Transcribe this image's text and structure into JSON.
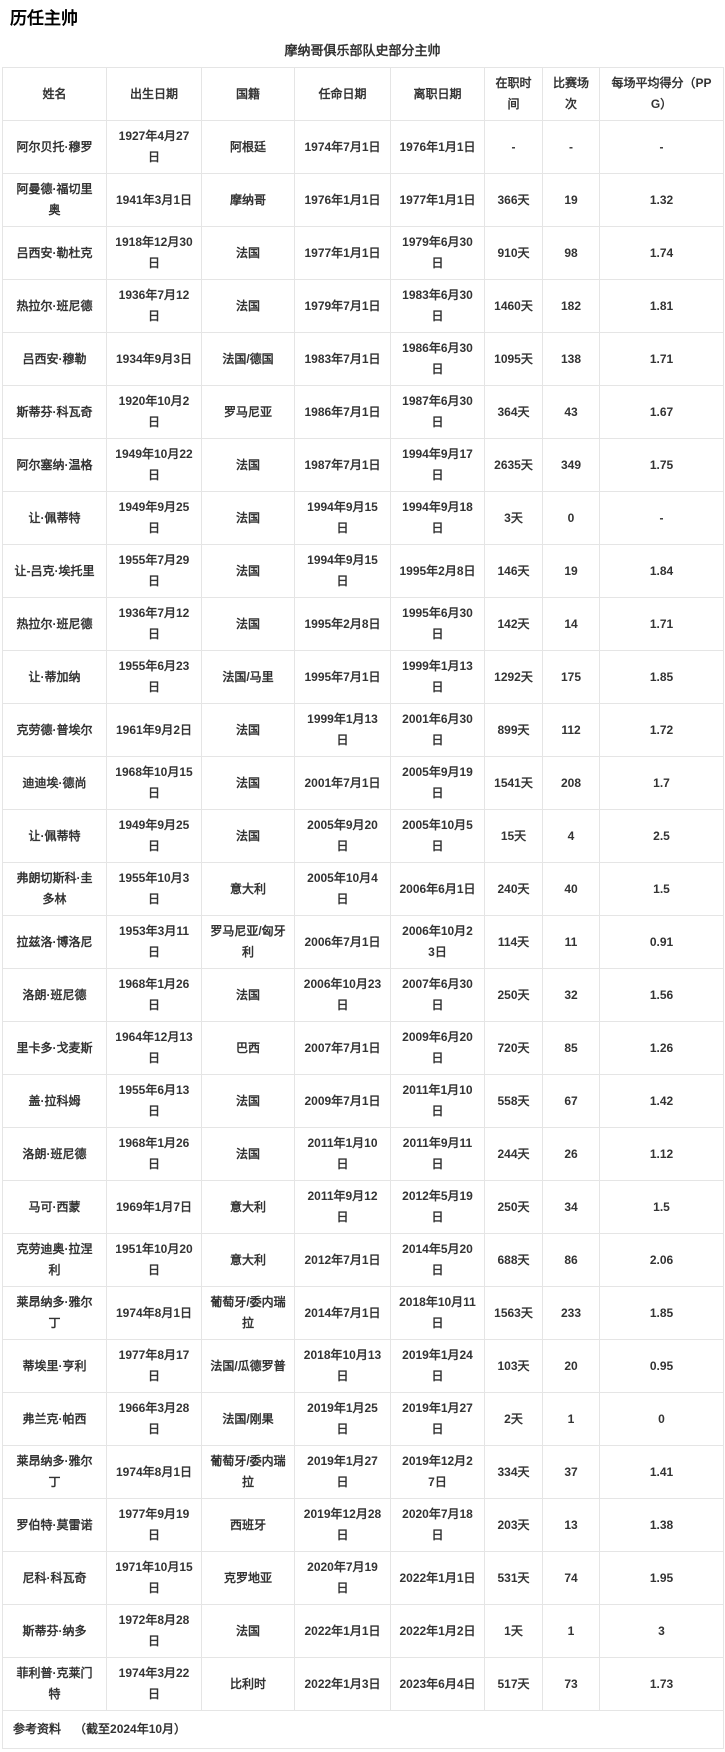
{
  "page": {
    "title": "历任主帅"
  },
  "table": {
    "caption": "摩纳哥俱乐部队史部分主帅",
    "headers": [
      "姓名",
      "出生日期",
      "国籍",
      "任命日期",
      "离职日期",
      "在职时间",
      "比赛场次",
      "每场平均得分（PPG）"
    ],
    "rows": [
      [
        "阿尔贝托·穆罗",
        "1927年4月27日",
        "阿根廷",
        "1974年7月1日",
        "1976年1月1日",
        "-",
        "-",
        "-"
      ],
      [
        "阿曼德·福切里奥",
        "1941年3月1日",
        "摩纳哥",
        "1976年1月1日",
        "1977年1月1日",
        "366天",
        "19",
        "1.32"
      ],
      [
        "吕西安·勒杜克",
        "1918年12月30日",
        "法国",
        "1977年1月1日",
        "1979年6月30日",
        "910天",
        "98",
        "1.74"
      ],
      [
        "热拉尔·班尼德",
        "1936年7月12日",
        "法国",
        "1979年7月1日",
        "1983年6月30日",
        "1460天",
        "182",
        "1.81"
      ],
      [
        "吕西安·穆勒",
        "1934年9月3日",
        "法国/德国",
        "1983年7月1日",
        "1986年6月30日",
        "1095天",
        "138",
        "1.71"
      ],
      [
        "斯蒂芬·科瓦奇",
        "1920年10月2日",
        "罗马尼亚",
        "1986年7月1日",
        "1987年6月30日",
        "364天",
        "43",
        "1.67"
      ],
      [
        "阿尔塞纳·温格",
        "1949年10月22日",
        "法国",
        "1987年7月1日",
        "1994年9月17日",
        "2635天",
        "349",
        "1.75"
      ],
      [
        "让·佩蒂特",
        "1949年9月25日",
        "法国",
        "1994年9月15日",
        "1994年9月18日",
        "3天",
        "0",
        "-"
      ],
      [
        "让-吕克·埃托里",
        "1955年7月29日",
        "法国",
        "1994年9月15日",
        "1995年2月8日",
        "146天",
        "19",
        "1.84"
      ],
      [
        "热拉尔·班尼德",
        "1936年7月12日",
        "法国",
        "1995年2月8日",
        "1995年6月30日",
        "142天",
        "14",
        "1.71"
      ],
      [
        "让·蒂加纳",
        "1955年6月23日",
        "法国/马里",
        "1995年7月1日",
        "1999年1月13日",
        "1292天",
        "175",
        "1.85"
      ],
      [
        "克劳德·普埃尔",
        "1961年9月2日",
        "法国",
        "1999年1月13日",
        "2001年6月30日",
        "899天",
        "112",
        "1.72"
      ],
      [
        "迪迪埃·德尚",
        "1968年10月15日",
        "法国",
        "2001年7月1日",
        "2005年9月19日",
        "1541天",
        "208",
        "1.7"
      ],
      [
        "让·佩蒂特",
        "1949年9月25日",
        "法国",
        "2005年9月20日",
        "2005年10月5日",
        "15天",
        "4",
        "2.5"
      ],
      [
        "弗朗切斯科·圭多林",
        "1955年10月3日",
        "意大利",
        "2005年10月4日",
        "2006年6月1日",
        "240天",
        "40",
        "1.5"
      ],
      [
        "拉兹洛·博洛尼",
        "1953年3月11日",
        "罗马尼亚/匈牙利",
        "2006年7月1日",
        "2006年10月23日",
        "114天",
        "11",
        "0.91"
      ],
      [
        "洛朗·班尼德",
        "1968年1月26日",
        "法国",
        "2006年10月23日",
        "2007年6月30日",
        "250天",
        "32",
        "1.56"
      ],
      [
        "里卡多·戈麦斯",
        "1964年12月13日",
        "巴西",
        "2007年7月1日",
        "2009年6月20日",
        "720天",
        "85",
        "1.26"
      ],
      [
        "盖·拉科姆",
        "1955年6月13日",
        "法国",
        "2009年7月1日",
        "2011年1月10日",
        "558天",
        "67",
        "1.42"
      ],
      [
        "洛朗·班尼德",
        "1968年1月26日",
        "法国",
        "2011年1月10日",
        "2011年9月11日",
        "244天",
        "26",
        "1.12"
      ],
      [
        "马可·西蒙",
        "1969年1月7日",
        "意大利",
        "2011年9月12日",
        "2012年5月19日",
        "250天",
        "34",
        "1.5"
      ],
      [
        "克劳迪奥·拉涅利",
        "1951年10月20日",
        "意大利",
        "2012年7月1日",
        "2014年5月20日",
        "688天",
        "86",
        "2.06"
      ],
      [
        "莱昂纳多·雅尔丁",
        "1974年8月1日",
        "葡萄牙/委内瑞拉",
        "2014年7月1日",
        "2018年10月11日",
        "1563天",
        "233",
        "1.85"
      ],
      [
        "蒂埃里·亨利",
        "1977年8月17日",
        "法国/瓜德罗普",
        "2018年10月13日",
        "2019年1月24日",
        "103天",
        "20",
        "0.95"
      ],
      [
        "弗兰克·帕西",
        "1966年3月28日",
        "法国/刚果",
        "2019年1月25日",
        "2019年1月27日",
        "2天",
        "1",
        "0"
      ],
      [
        "莱昂纳多·雅尔丁",
        "1974年8月1日",
        "葡萄牙/委内瑞拉",
        "2019年1月27日",
        "2019年12月27日",
        "334天",
        "37",
        "1.41"
      ],
      [
        "罗伯特·莫雷诺",
        "1977年9月19日",
        "西班牙",
        "2019年12月28日",
        "2020年7月18日",
        "203天",
        "13",
        "1.38"
      ],
      [
        "尼科·科瓦奇",
        "1971年10月15日",
        "克罗地亚",
        "2020年7月19日",
        "2022年1月1日",
        "531天",
        "74",
        "1.95"
      ],
      [
        "斯蒂芬·纳多",
        "1972年8月28日",
        "法国",
        "2022年1月1日",
        "2022年1月2日",
        "1天",
        "1",
        "3"
      ],
      [
        "菲利普·克莱门特",
        "1974年3月22日",
        "比利时",
        "2022年1月3日",
        "2023年6月4日",
        "517天",
        "73",
        "1.73"
      ]
    ],
    "footer": {
      "label": "参考资料",
      "note": "（截至2024年10月）"
    }
  },
  "colors": {
    "border": "#e5e5e5",
    "text": "#333333",
    "background": "#ffffff"
  }
}
